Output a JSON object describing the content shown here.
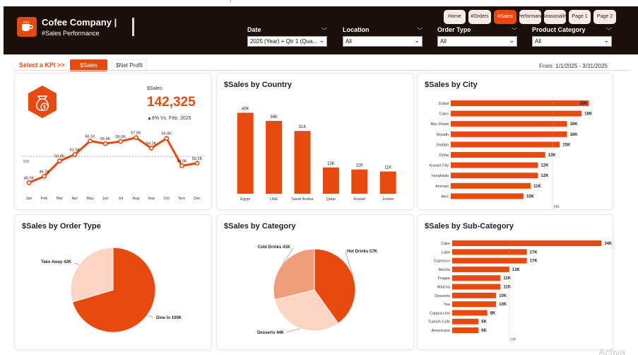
{
  "header": {
    "company": "Cofee Company |",
    "subtitle": "#Sales Performance",
    "filters": [
      {
        "label": "Date",
        "value": "2025 (Year) + Qtr 1 (Qua..."
      },
      {
        "label": "Location",
        "value": "All"
      },
      {
        "label": "Order Type",
        "value": "All"
      },
      {
        "label": "Product Category",
        "value": "All"
      }
    ],
    "nav": [
      {
        "label": "Home",
        "active": false
      },
      {
        "label": "#Orders",
        "active": false
      },
      {
        "label": "#Sales",
        "active": true
      },
      {
        "label": "#Performance",
        "active": false
      },
      {
        "label": "Seasonality",
        "active": false
      },
      {
        "label": "Page 1",
        "active": false
      },
      {
        "label": "Page 2",
        "active": false
      }
    ]
  },
  "kpi_selector": {
    "label": "Select a KPI >>",
    "options": [
      "$Sales",
      "$Net Profit"
    ],
    "selected": "$Sales",
    "date_range": "From: 1/1/2025 - 3/31/2025"
  },
  "kpi_card": {
    "metric_label": "$Sales",
    "value": "142,325",
    "variance": "▲8% Vs. Feb. 2025",
    "icon": "money-bag-icon"
  },
  "chart_data": [
    {
      "id": "monthly-sales",
      "type": "line",
      "categories": [
        "Jan",
        "Feb",
        "Mar",
        "Apr",
        "May",
        "Jun",
        "Jul",
        "Aug",
        "Sep",
        "Oct",
        "Nov",
        "Dec"
      ],
      "values": [
        45.0,
        46.7,
        50.8,
        52.5,
        56.1,
        55.4,
        56.0,
        57.0,
        54.2,
        56.8,
        49.5,
        50.2
      ],
      "data_labels": [
        "45.0K",
        "46.7K",
        "50.8K",
        "52.5K",
        "56.1K",
        "55.4K",
        "56.0K",
        "57.0K",
        "54.2K",
        "56.8K",
        "49.5K",
        "50.2K"
      ],
      "average_line": {
        "value": 52.0,
        "label": "52K"
      },
      "ylim": [
        43,
        59
      ]
    },
    {
      "id": "sales-by-country",
      "type": "bar",
      "title": "$Sales by Country",
      "categories": [
        "Egypt",
        "UAE",
        "Saudi Arabia",
        "Qatar",
        "Kuwait",
        "Jordan"
      ],
      "values": [
        40,
        36,
        31,
        13,
        12,
        11
      ],
      "data_labels": [
        "40K",
        "36K",
        "31K",
        "13K",
        "12K",
        "11K"
      ],
      "ylim": [
        0,
        44
      ]
    },
    {
      "id": "sales-by-city",
      "type": "bar",
      "orientation": "horizontal",
      "title": "$Sales by City",
      "categories": [
        "Dubai",
        "Cairo",
        "Abu Dhabi",
        "Riyadh",
        "Jeddah",
        "Doha",
        "Kuwait City",
        "Hurghada",
        "Amman",
        "Alex"
      ],
      "values": [
        19,
        18,
        16,
        16,
        15,
        13,
        12,
        12,
        11,
        10
      ],
      "data_labels": [
        "19K",
        "18K",
        "16K",
        "16K",
        "15K",
        "13K",
        "12K",
        "12K",
        "11K",
        "10K"
      ],
      "average_line": {
        "value": 14,
        "label": "14K"
      },
      "xlim": [
        0,
        21
      ]
    },
    {
      "id": "sales-by-order-type",
      "type": "pie",
      "title": "$Sales by Order Type",
      "labels": [
        "Dine In",
        "Take Away"
      ],
      "values": [
        100,
        42
      ],
      "data_labels": [
        "Dine In 100K",
        "Take Away 42K"
      ],
      "colors": [
        "#e8490f",
        "#fbd5c4"
      ]
    },
    {
      "id": "sales-by-category",
      "type": "pie",
      "title": "$Sales by Category",
      "labels": [
        "Hot Drinks",
        "Desserts",
        "Cold Drinks"
      ],
      "values": [
        57,
        44,
        41
      ],
      "data_labels": [
        "Hot Drinks 57K",
        "Desserts 44K",
        "Cold Drinks 41K"
      ],
      "colors": [
        "#e8490f",
        "#fbd5c4",
        "#ef9d7b"
      ]
    },
    {
      "id": "sales-by-sub-category",
      "type": "bar",
      "orientation": "horizontal",
      "title": "$Sales by Sub-Category",
      "categories": [
        "Cake",
        "Latte",
        "Espresso",
        "Mocha",
        "Frappe",
        "Matcha",
        "Desserts",
        "Tea",
        "Cappuccino",
        "Turkish Cafe",
        "Americano"
      ],
      "values": [
        34,
        17,
        17,
        13,
        11,
        11,
        10,
        10,
        8,
        6,
        6
      ],
      "data_labels": [
        "34K",
        "17K",
        "17K",
        "13K",
        "11K",
        "11K",
        "10K",
        "10K",
        "8K",
        "6K",
        "6K"
      ],
      "average_line": {
        "value": 13,
        "label": "13K"
      },
      "xlim": [
        0,
        37
      ]
    }
  ],
  "watermark": "Activa",
  "colors": {
    "accent": "#e8490f",
    "header_bg": "#1a0f0a",
    "light": "#fbd5c4",
    "mid": "#ef9d7b"
  }
}
